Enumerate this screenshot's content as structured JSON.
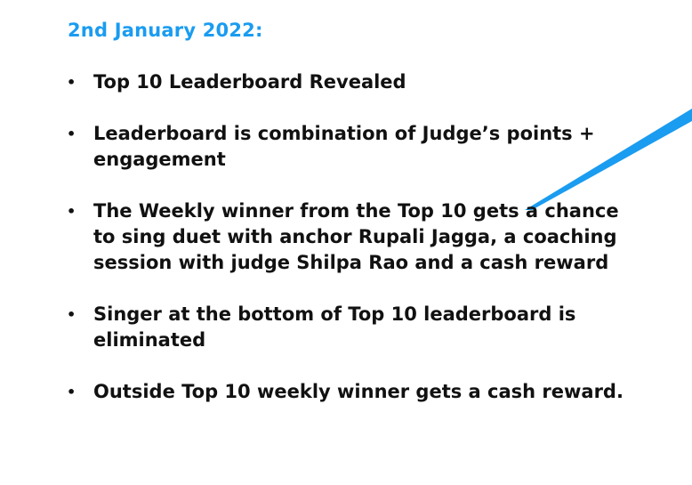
{
  "slide": {
    "date_heading": "2nd January 2022:",
    "bullets": [
      "Top 10 Leaderboard Revealed",
      "Leaderboard is combination of Judge’s points + engagement",
      "The Weekly winner from the Top 10 gets a chance to sing duet with anchor Rupali Jagga, a coaching session with judge Shilpa Rao and a cash reward",
      "Singer at the bottom of Top 10 leaderboard is eliminated",
      "Outside Top 10 weekly winner gets a cash reward."
    ],
    "colors": {
      "heading": "#1a9cf0",
      "accent_stroke": "#1a9cf0",
      "text": "#111111"
    }
  }
}
